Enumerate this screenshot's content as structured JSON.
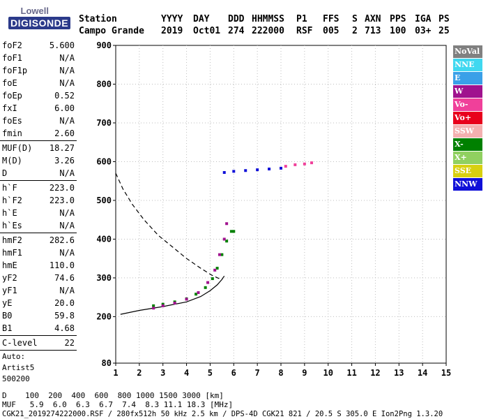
{
  "logo": {
    "top": "Lowell",
    "bottom": "DIGISONDE"
  },
  "header": {
    "labels": [
      "Station",
      "YYYY",
      "DAY",
      "DDD",
      "HHMMSS",
      "P1",
      "FFS",
      "S",
      "AXN",
      "PPS",
      "IGA",
      "PS"
    ],
    "values": [
      "Campo Grande",
      "2019",
      "Oct01",
      "274",
      "222000",
      "RSF",
      "005",
      "2",
      "713",
      "100",
      "03+",
      "25"
    ]
  },
  "params": [
    [
      {
        "label": "foF2",
        "value": "5.600"
      },
      {
        "label": "foF1",
        "value": "N/A"
      },
      {
        "label": "foF1p",
        "value": "N/A"
      },
      {
        "label": "foE",
        "value": "N/A"
      },
      {
        "label": "foEp",
        "value": "0.52"
      },
      {
        "label": "fxI",
        "value": "6.00"
      },
      {
        "label": "foEs",
        "value": "N/A"
      },
      {
        "label": "fmin",
        "value": "2.60"
      }
    ],
    [
      {
        "label": "MUF(D)",
        "value": "18.27"
      },
      {
        "label": "M(D)",
        "value": "3.26"
      },
      {
        "label": "D",
        "value": "N/A"
      }
    ],
    [
      {
        "label": "h`F",
        "value": "223.0"
      },
      {
        "label": "h`F2",
        "value": "223.0"
      },
      {
        "label": "h`E",
        "value": "N/A"
      },
      {
        "label": "h`Es",
        "value": "N/A"
      }
    ],
    [
      {
        "label": "hmF2",
        "value": "282.6"
      },
      {
        "label": "hmF1",
        "value": "N/A"
      },
      {
        "label": "hmE",
        "value": "110.0"
      },
      {
        "label": "yF2",
        "value": "74.6"
      },
      {
        "label": "yF1",
        "value": "N/A"
      },
      {
        "label": "yE",
        "value": "20.0"
      },
      {
        "label": "B0",
        "value": "59.8"
      },
      {
        "label": "B1",
        "value": "4.68"
      }
    ],
    [
      {
        "label": "C-level",
        "value": "22"
      }
    ]
  ],
  "auto": [
    "Auto:",
    "Artist5",
    "500200"
  ],
  "legend": [
    {
      "label": "NoVal",
      "color": "#808080"
    },
    {
      "label": "NNE",
      "color": "#40d8f0"
    },
    {
      "label": "E",
      "color": "#3aa0e8"
    },
    {
      "label": "W",
      "color": "#a0128e"
    },
    {
      "label": "Vo-",
      "color": "#f0409a"
    },
    {
      "label": "Vo+",
      "color": "#e8001c"
    },
    {
      "label": "SSW",
      "color": "#f4b0b0"
    },
    {
      "label": "X-",
      "color": "#008000"
    },
    {
      "label": "X+",
      "color": "#90d060"
    },
    {
      "label": "SSE",
      "color": "#d8d010"
    },
    {
      "label": "NNW",
      "color": "#1010d8"
    }
  ],
  "bottom": {
    "d_row": "D    100  200  400  600  800 1000 1500 3000 [km]",
    "muf_row": "MUF   5.9  6.0  6.3  6.7  7.4  8.3 11.1 18.3 [MHz]",
    "footer": "CGK21_2019274222000.RSF / 280fx512h 50 kHz 2.5 km / DPS-4D CGK21 821 / 20.5 S 305.0 E Ion2Png 1.3.20"
  },
  "chart_data": {
    "type": "scatter",
    "title": "",
    "xlabel": "",
    "ylabel": "",
    "xlim": [
      1,
      15
    ],
    "ylim": [
      80,
      900
    ],
    "x_ticks": [
      1,
      2,
      3,
      4,
      5,
      6,
      7,
      8,
      9,
      10,
      11,
      12,
      13,
      14,
      15
    ],
    "y_ticks": [
      80,
      200,
      300,
      400,
      500,
      600,
      700,
      800,
      900
    ],
    "grid": true,
    "legend_position": "right",
    "series": [
      {
        "name": "X-",
        "points": [
          [
            2.6,
            228
          ],
          [
            3.0,
            232
          ],
          [
            3.5,
            238
          ],
          [
            4.0,
            246
          ],
          [
            4.4,
            258
          ],
          [
            4.8,
            275
          ],
          [
            5.1,
            298
          ],
          [
            5.3,
            325
          ],
          [
            5.5,
            360
          ],
          [
            5.7,
            395
          ],
          [
            5.9,
            420
          ],
          [
            6.0,
            420
          ]
        ]
      },
      {
        "name": "W",
        "points": [
          [
            2.6,
            222
          ],
          [
            3.0,
            228
          ],
          [
            3.5,
            235
          ],
          [
            4.0,
            245
          ],
          [
            4.5,
            262
          ],
          [
            4.9,
            288
          ],
          [
            5.2,
            320
          ],
          [
            5.4,
            360
          ],
          [
            5.6,
            400
          ],
          [
            5.7,
            440
          ]
        ]
      },
      {
        "name": "NNW",
        "points": [
          [
            5.6,
            572
          ],
          [
            6.0,
            575
          ],
          [
            6.5,
            577
          ],
          [
            7.0,
            579
          ],
          [
            7.5,
            581
          ],
          [
            8.0,
            583
          ]
        ]
      },
      {
        "name": "Vo-",
        "points": [
          [
            8.2,
            588
          ],
          [
            8.6,
            592
          ],
          [
            9.0,
            594
          ],
          [
            9.3,
            597
          ]
        ]
      }
    ],
    "curves": [
      {
        "name": "profile",
        "points": [
          [
            1.2,
            206
          ],
          [
            2.0,
            216
          ],
          [
            3.0,
            226
          ],
          [
            4.0,
            238
          ],
          [
            4.6,
            252
          ],
          [
            5.0,
            267
          ],
          [
            5.3,
            282
          ],
          [
            5.5,
            296
          ],
          [
            5.6,
            305
          ]
        ]
      },
      {
        "name": "muf",
        "points": [
          [
            1.0,
            570
          ],
          [
            1.3,
            530
          ],
          [
            1.7,
            490
          ],
          [
            2.2,
            450
          ],
          [
            2.8,
            410
          ],
          [
            3.4,
            380
          ],
          [
            4.0,
            350
          ],
          [
            4.6,
            325
          ],
          [
            5.1,
            306
          ],
          [
            5.5,
            295
          ]
        ]
      }
    ]
  }
}
